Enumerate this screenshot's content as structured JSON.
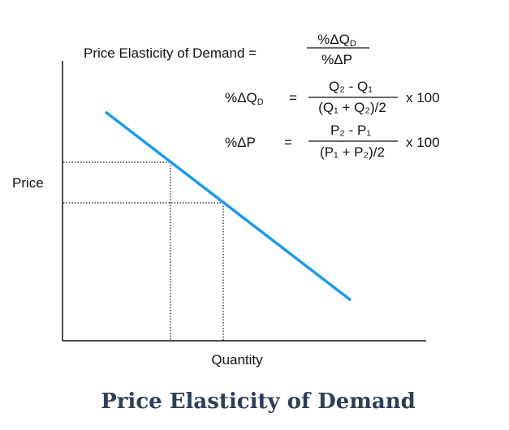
{
  "formula_main": {
    "label": "Price Elasticity of Demand =",
    "numerator_base": "%ΔQ",
    "numerator_sub": "D",
    "denominator": "%ΔP"
  },
  "formula_quantity": {
    "lhs_base": "%ΔQ",
    "lhs_sub": "D",
    "equals": "=",
    "numerator": "Q₂ - Q₁",
    "denominator": "(Q₁ + Q₂)/2",
    "multiplier": "x 100"
  },
  "formula_price": {
    "lhs": "%ΔP",
    "equals": "=",
    "numerator": "P₂ - P₁",
    "denominator": "(P₁ + P₂)/2",
    "multiplier": "x 100"
  },
  "axes": {
    "y_label": "Price",
    "x_label": "Quantity"
  },
  "caption": "Price Elasticity of Demand"
}
